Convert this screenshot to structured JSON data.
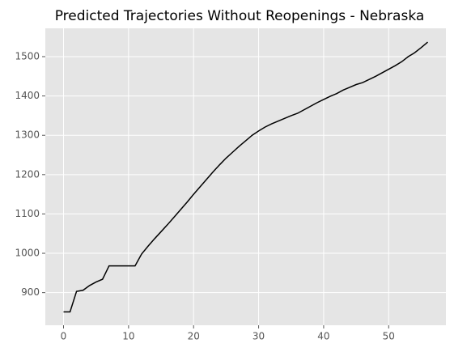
{
  "chart_data": {
    "type": "line",
    "title": "Predicted Trajectories Without Reopenings - Nebraska",
    "x": [
      0,
      1,
      2,
      3,
      4,
      5,
      6,
      7,
      8,
      9,
      10,
      11,
      12,
      13,
      14,
      15,
      16,
      17,
      18,
      19,
      20,
      21,
      22,
      23,
      24,
      25,
      26,
      27,
      28,
      29,
      30,
      31,
      32,
      33,
      34,
      35,
      36,
      37,
      38,
      39,
      40,
      41,
      42,
      43,
      44,
      45,
      46,
      47,
      48,
      49,
      50,
      51,
      52,
      53,
      54,
      55,
      56
    ],
    "series": [
      {
        "color": "#000000",
        "values": [
          851,
          851,
          903,
          906,
          918,
          927,
          934,
          968,
          968,
          968,
          968,
          968,
          998,
          1018,
          1037,
          1055,
          1073,
          1092,
          1111,
          1130,
          1150,
          1169,
          1188,
          1207,
          1225,
          1242,
          1257,
          1272,
          1286,
          1300,
          1311,
          1321,
          1329,
          1336,
          1343,
          1350,
          1356,
          1365,
          1374,
          1383,
          1391,
          1399,
          1406,
          1415,
          1422,
          1429,
          1434,
          1442,
          1450,
          1459,
          1468,
          1477,
          1487,
          1500,
          1510,
          1523,
          1537
        ]
      }
    ],
    "xlim": [
      -2.8,
      58.8
    ],
    "ylim": [
      817,
      1572
    ],
    "xticks": [
      0,
      10,
      20,
      30,
      40,
      50
    ],
    "yticks": [
      900,
      1000,
      1100,
      1200,
      1300,
      1400,
      1500
    ],
    "grid": true
  }
}
